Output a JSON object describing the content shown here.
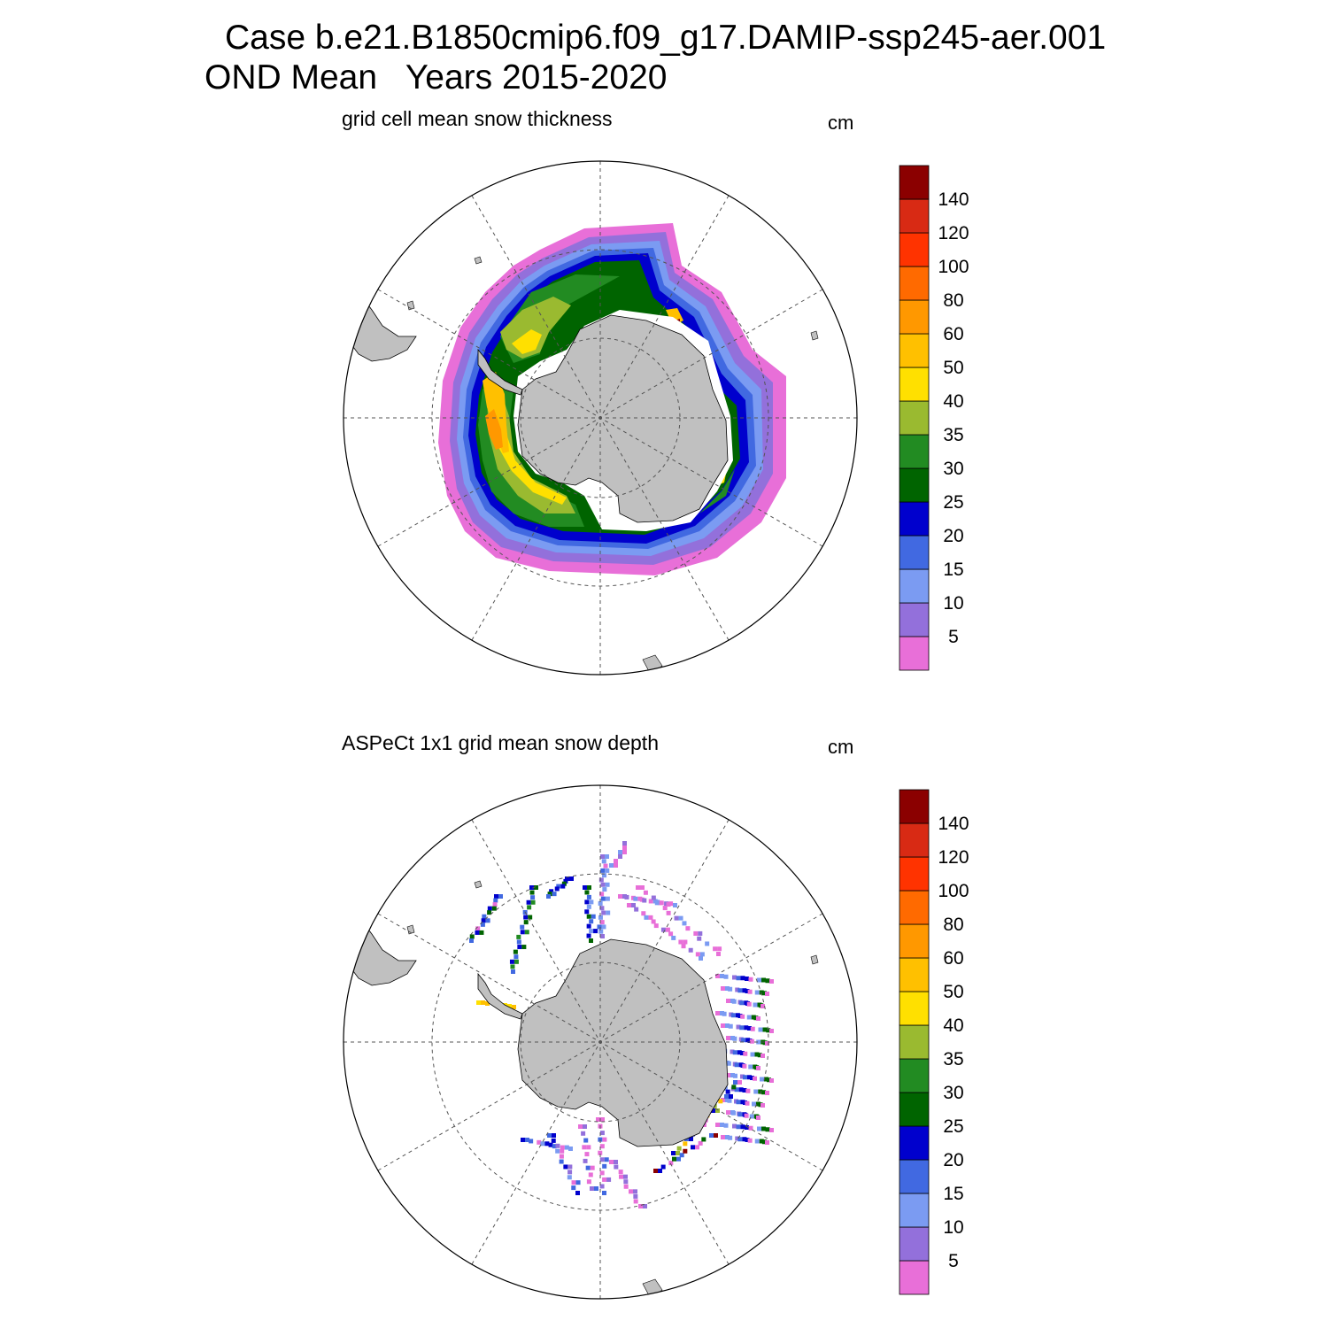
{
  "title": {
    "line1": "Case b.e21.B1850cmip6.f09_g17.DAMIP-ssp245-aer.001",
    "line2": "OND Mean   Years 2015-2020"
  },
  "panels": [
    {
      "id": "model",
      "title": "grid cell mean snow thickness",
      "units": "cm"
    },
    {
      "id": "obs",
      "title": "ASPeCt 1x1 grid mean snow depth",
      "units": "cm"
    }
  ],
  "colorbar": {
    "colors": [
      "#e86fd8",
      "#9370db",
      "#7b9bf2",
      "#4169e1",
      "#0000cd",
      "#006400",
      "#228b22",
      "#9aba30",
      "#ffe000",
      "#ffc000",
      "#ff9800",
      "#ff6a00",
      "#ff3300",
      "#d82a14",
      "#8b0000"
    ],
    "labels": [
      "5",
      "10",
      "15",
      "20",
      "25",
      "30",
      "35",
      "40",
      "50",
      "60",
      "80",
      "100",
      "120",
      "140"
    ]
  },
  "map": {
    "land_color": "#c0c0c0",
    "grid_color": "#555555"
  }
}
